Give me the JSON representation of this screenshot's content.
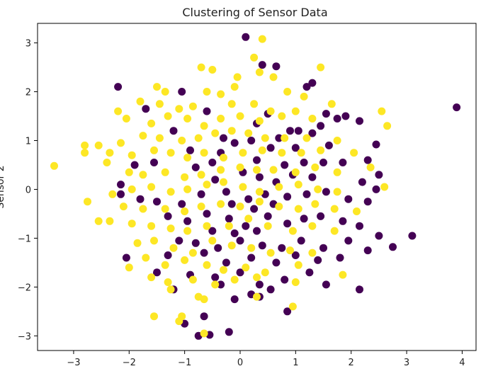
{
  "chart_data": {
    "type": "scatter",
    "title": "Clustering of Sensor Data",
    "xlabel": "",
    "ylabel": "Sensor 2",
    "xlim": [
      -3.65,
      4.25
    ],
    "ylim": [
      -3.3,
      3.4
    ],
    "xticks": [
      "−3",
      "−2",
      "−1",
      "0",
      "1",
      "2",
      "3",
      "4"
    ],
    "yticks": [
      "−3",
      "−2",
      "−1",
      "0",
      "1",
      "2",
      "3"
    ],
    "grid": false,
    "colors": {
      "cluster_0": "#440154",
      "cluster_1": "#FDE725"
    },
    "series": [
      {
        "name": "",
        "color": "#440154",
        "points": [
          [
            0.1,
            3.12
          ],
          [
            0.4,
            2.55
          ],
          [
            0.65,
            2.52
          ],
          [
            1.3,
            2.18
          ],
          [
            1.2,
            2.1
          ],
          [
            -2.2,
            2.1
          ],
          [
            -1.05,
            2.0
          ],
          [
            3.9,
            1.68
          ],
          [
            -1.7,
            1.65
          ],
          [
            -0.6,
            1.6
          ],
          [
            1.75,
            1.45
          ],
          [
            1.9,
            1.5
          ],
          [
            2.15,
            1.4
          ],
          [
            1.55,
            1.55
          ],
          [
            0.5,
            1.55
          ],
          [
            0.3,
            1.35
          ],
          [
            1.05,
            1.2
          ],
          [
            1.3,
            1.15
          ],
          [
            1.45,
            1.3
          ],
          [
            0.9,
            1.2
          ],
          [
            -1.2,
            1.2
          ],
          [
            -0.3,
            1.05
          ],
          [
            0.2,
            1.0
          ],
          [
            0.7,
            1.05
          ],
          [
            2.45,
            0.92
          ],
          [
            1.6,
            0.9
          ],
          [
            2.3,
            0.6
          ],
          [
            2.5,
            0.3
          ],
          [
            -2.15,
            0.1
          ],
          [
            -1.9,
            0.5
          ],
          [
            -1.55,
            0.55
          ],
          [
            -0.8,
            0.45
          ],
          [
            -0.5,
            0.55
          ],
          [
            0.3,
            0.6
          ],
          [
            0.8,
            0.5
          ],
          [
            1.15,
            0.55
          ],
          [
            1.5,
            0.55
          ],
          [
            1.85,
            0.55
          ],
          [
            2.2,
            0.15
          ],
          [
            2.45,
            0.0
          ],
          [
            -2.15,
            -0.1
          ],
          [
            -1.8,
            -0.2
          ],
          [
            -1.5,
            -0.25
          ],
          [
            -1.05,
            -0.3
          ],
          [
            -0.7,
            -0.1
          ],
          [
            -0.25,
            -0.05
          ],
          [
            0.15,
            -0.2
          ],
          [
            0.45,
            -0.1
          ],
          [
            0.85,
            -0.15
          ],
          [
            1.2,
            -0.1
          ],
          [
            1.55,
            -0.05
          ],
          [
            1.95,
            -0.2
          ],
          [
            2.3,
            -0.25
          ],
          [
            -1.3,
            -0.55
          ],
          [
            -0.95,
            -0.65
          ],
          [
            -0.6,
            -0.5
          ],
          [
            -0.2,
            -0.6
          ],
          [
            0.1,
            -0.75
          ],
          [
            0.5,
            -0.55
          ],
          [
            0.85,
            -0.7
          ],
          [
            1.15,
            -0.6
          ],
          [
            1.45,
            -0.55
          ],
          [
            1.85,
            -0.65
          ],
          [
            2.15,
            -0.75
          ],
          [
            -1.1,
            -1.05
          ],
          [
            -0.8,
            -1.1
          ],
          [
            -0.4,
            -1.2
          ],
          [
            0.0,
            -1.05
          ],
          [
            0.4,
            -1.15
          ],
          [
            0.75,
            -1.2
          ],
          [
            1.1,
            -1.05
          ],
          [
            1.5,
            -1.2
          ],
          [
            1.95,
            -1.05
          ],
          [
            2.5,
            -0.95
          ],
          [
            3.1,
            -0.95
          ],
          [
            2.75,
            -1.18
          ],
          [
            2.3,
            -1.25
          ],
          [
            -2.05,
            -1.4
          ],
          [
            -1.3,
            -1.35
          ],
          [
            -0.65,
            -1.3
          ],
          [
            -0.25,
            -1.5
          ],
          [
            0.2,
            -1.4
          ],
          [
            0.65,
            -1.5
          ],
          [
            1.0,
            -1.35
          ],
          [
            1.4,
            -1.45
          ],
          [
            1.8,
            -1.4
          ],
          [
            -1.5,
            -1.7
          ],
          [
            -0.9,
            -1.75
          ],
          [
            -0.45,
            -1.8
          ],
          [
            0.0,
            -1.7
          ],
          [
            0.35,
            -1.95
          ],
          [
            0.8,
            -1.85
          ],
          [
            1.25,
            -1.7
          ],
          [
            1.55,
            -1.95
          ],
          [
            -1.2,
            -2.05
          ],
          [
            -0.35,
            -1.95
          ],
          [
            0.2,
            -2.15
          ],
          [
            0.55,
            -2.05
          ],
          [
            0.35,
            -2.2
          ],
          [
            -0.1,
            -2.25
          ],
          [
            2.15,
            -2.05
          ],
          [
            0.85,
            -2.5
          ],
          [
            -0.65,
            -2.6
          ],
          [
            -1.0,
            -2.75
          ],
          [
            -0.55,
            -2.98
          ],
          [
            -0.2,
            -2.92
          ],
          [
            -0.75,
            -3.0
          ],
          [
            -0.1,
            0.95
          ],
          [
            0.55,
            0.85
          ],
          [
            -0.35,
            0.75
          ],
          [
            -0.9,
            0.8
          ],
          [
            1.0,
            0.85
          ],
          [
            0.05,
            0.35
          ],
          [
            0.35,
            0.25
          ],
          [
            -0.45,
            0.2
          ],
          [
            0.65,
            0.15
          ],
          [
            0.95,
            0.3
          ],
          [
            1.3,
            0.25
          ],
          [
            -0.15,
            -0.3
          ],
          [
            0.25,
            -0.4
          ],
          [
            0.6,
            -0.3
          ],
          [
            -0.5,
            -0.85
          ],
          [
            -0.1,
            -0.9
          ],
          [
            0.3,
            -0.85
          ]
        ]
      },
      {
        "name": "",
        "color": "#FDE725",
        "points": [
          [
            0.4,
            3.08
          ],
          [
            0.25,
            2.7
          ],
          [
            -0.7,
            2.5
          ],
          [
            -0.5,
            2.45
          ],
          [
            -0.05,
            2.3
          ],
          [
            0.35,
            2.4
          ],
          [
            0.6,
            2.3
          ],
          [
            1.45,
            2.5
          ],
          [
            -1.5,
            2.1
          ],
          [
            -1.35,
            2.0
          ],
          [
            -0.6,
            2.0
          ],
          [
            -0.35,
            1.95
          ],
          [
            -0.1,
            2.1
          ],
          [
            0.85,
            2.0
          ],
          [
            1.15,
            1.9
          ],
          [
            -2.2,
            1.6
          ],
          [
            -1.8,
            1.8
          ],
          [
            -1.45,
            1.75
          ],
          [
            -1.1,
            1.65
          ],
          [
            -0.85,
            1.7
          ],
          [
            -0.15,
            1.75
          ],
          [
            0.25,
            1.75
          ],
          [
            0.55,
            1.6
          ],
          [
            1.0,
            1.6
          ],
          [
            1.65,
            1.75
          ],
          [
            2.55,
            1.6
          ],
          [
            -2.05,
            1.45
          ],
          [
            -1.6,
            1.35
          ],
          [
            -1.3,
            1.5
          ],
          [
            -0.95,
            1.45
          ],
          [
            -0.65,
            1.3
          ],
          [
            -0.35,
            1.45
          ],
          [
            0.0,
            1.5
          ],
          [
            0.35,
            1.4
          ],
          [
            0.75,
            1.5
          ],
          [
            1.3,
            1.45
          ],
          [
            -2.8,
            0.9
          ],
          [
            -2.55,
            0.9
          ],
          [
            -2.15,
            0.95
          ],
          [
            -1.75,
            1.1
          ],
          [
            -1.45,
            1.05
          ],
          [
            -1.05,
            1.0
          ],
          [
            -0.75,
            1.05
          ],
          [
            -0.45,
            1.15
          ],
          [
            -0.15,
            1.2
          ],
          [
            0.15,
            1.15
          ],
          [
            0.45,
            1.05
          ],
          [
            0.8,
            1.05
          ],
          [
            1.2,
            1.05
          ],
          [
            1.75,
            1.0
          ],
          [
            2.65,
            1.3
          ],
          [
            -2.8,
            0.75
          ],
          [
            -2.35,
            0.75
          ],
          [
            -1.95,
            0.7
          ],
          [
            -1.55,
            0.8
          ],
          [
            -1.25,
            0.75
          ],
          [
            -0.95,
            0.65
          ],
          [
            -0.65,
            0.75
          ],
          [
            -0.3,
            0.65
          ],
          [
            0.05,
            0.75
          ],
          [
            0.4,
            0.8
          ],
          [
            0.75,
            0.75
          ],
          [
            1.1,
            0.75
          ],
          [
            1.45,
            0.8
          ],
          [
            2.05,
            0.75
          ],
          [
            -3.35,
            0.48
          ],
          [
            -2.4,
            0.55
          ],
          [
            -2.0,
            0.35
          ],
          [
            -1.75,
            0.3
          ],
          [
            -1.35,
            0.35
          ],
          [
            -1.0,
            0.25
          ],
          [
            -0.7,
            0.3
          ],
          [
            -0.35,
            0.4
          ],
          [
            0.0,
            0.45
          ],
          [
            0.3,
            0.4
          ],
          [
            0.6,
            0.4
          ],
          [
            1.0,
            0.35
          ],
          [
            1.35,
            0.45
          ],
          [
            1.75,
            0.35
          ],
          [
            2.35,
            0.45
          ],
          [
            -2.3,
            -0.1
          ],
          [
            -1.95,
            0.0
          ],
          [
            -1.6,
            0.05
          ],
          [
            -1.25,
            -0.05
          ],
          [
            -0.95,
            0.0
          ],
          [
            -0.6,
            0.1
          ],
          [
            -0.3,
            0.15
          ],
          [
            0.05,
            0.05
          ],
          [
            0.35,
            -0.05
          ],
          [
            0.7,
            0.05
          ],
          [
            1.05,
            0.1
          ],
          [
            1.4,
            0.0
          ],
          [
            1.75,
            -0.05
          ],
          [
            2.6,
            0.05
          ],
          [
            -2.75,
            -0.25
          ],
          [
            -2.1,
            -0.35
          ],
          [
            -1.75,
            -0.4
          ],
          [
            -1.35,
            -0.4
          ],
          [
            -1.0,
            -0.45
          ],
          [
            -0.7,
            -0.35
          ],
          [
            -0.35,
            -0.3
          ],
          [
            0.0,
            -0.35
          ],
          [
            0.35,
            -0.25
          ],
          [
            0.7,
            -0.35
          ],
          [
            1.05,
            -0.4
          ],
          [
            1.35,
            -0.3
          ],
          [
            1.7,
            -0.4
          ],
          [
            2.1,
            -0.45
          ],
          [
            -2.55,
            -0.65
          ],
          [
            -2.35,
            -0.65
          ],
          [
            -1.95,
            -0.7
          ],
          [
            -1.6,
            -0.75
          ],
          [
            -1.25,
            -0.8
          ],
          [
            -0.95,
            -0.85
          ],
          [
            -0.6,
            -0.75
          ],
          [
            -0.2,
            -0.75
          ],
          [
            0.15,
            -0.6
          ],
          [
            0.5,
            -0.75
          ],
          [
            0.95,
            -0.85
          ],
          [
            1.3,
            -0.75
          ],
          [
            1.7,
            -0.85
          ],
          [
            -1.85,
            -1.1
          ],
          [
            -1.55,
            -1.05
          ],
          [
            -1.2,
            -1.2
          ],
          [
            -0.85,
            -1.3
          ],
          [
            -0.5,
            -1.05
          ],
          [
            -0.15,
            -1.15
          ],
          [
            0.2,
            -1.2
          ],
          [
            0.55,
            -1.3
          ],
          [
            0.9,
            -1.25
          ],
          [
            1.3,
            -1.3
          ],
          [
            -2.0,
            -1.6
          ],
          [
            -1.7,
            -1.4
          ],
          [
            -1.35,
            -1.55
          ],
          [
            -1.0,
            -1.45
          ],
          [
            -0.6,
            -1.55
          ],
          [
            -0.3,
            -1.65
          ],
          [
            0.1,
            -1.6
          ],
          [
            0.45,
            -1.7
          ],
          [
            1.05,
            -1.55
          ],
          [
            1.85,
            -1.75
          ],
          [
            -1.6,
            -1.8
          ],
          [
            -1.3,
            -1.9
          ],
          [
            -0.85,
            -1.85
          ],
          [
            -0.45,
            -1.95
          ],
          [
            -0.1,
            -1.85
          ],
          [
            0.3,
            -1.8
          ],
          [
            1.0,
            -1.9
          ],
          [
            -1.25,
            -2.05
          ],
          [
            -0.75,
            -2.2
          ],
          [
            -0.65,
            -2.25
          ],
          [
            0.3,
            -2.2
          ],
          [
            0.95,
            -2.4
          ],
          [
            -1.55,
            -2.6
          ],
          [
            -1.05,
            -2.6
          ],
          [
            -1.1,
            -2.7
          ],
          [
            -0.65,
            -2.95
          ]
        ]
      }
    ]
  }
}
